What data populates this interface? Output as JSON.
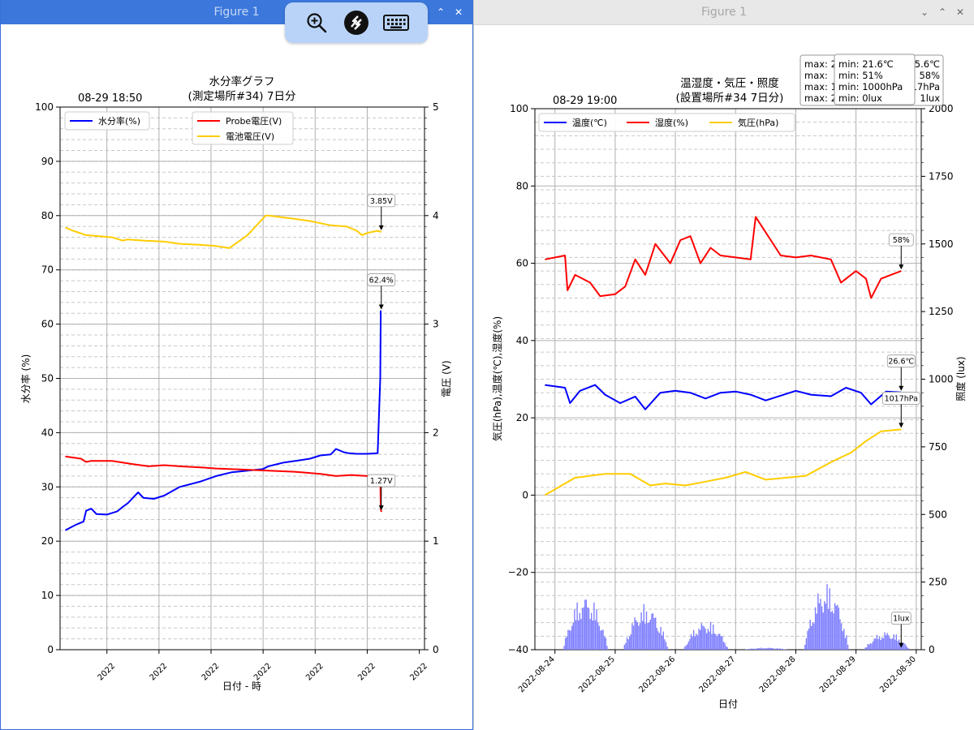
{
  "windows": [
    {
      "title": "Figure 1",
      "controls": {
        "minimize": "⌃",
        "maximize": "⌃",
        "close": "✕"
      }
    },
    {
      "title": "Figure 1",
      "controls": {
        "minimize": "⌄",
        "maximize": "⌃",
        "close": "✕"
      }
    }
  ],
  "remote_toolbar": {
    "icons": [
      "zoom-in-icon",
      "remote-connection-icon",
      "keyboard-icon"
    ]
  },
  "chart_data": [
    {
      "type": "line",
      "title": "水分率グラフ",
      "subtitle": "(測定場所#34) 7日分",
      "timestamp": "08-29 18:50",
      "xlabel": "日付 - 時",
      "ylabel": "水分率 (%)",
      "y2label": "電圧 (V)",
      "ylim": [
        0,
        100
      ],
      "y2lim": [
        0,
        5
      ],
      "xlim": [
        0,
        7
      ],
      "yticks": [
        "0",
        "10",
        "20",
        "30",
        "40",
        "50",
        "60",
        "70",
        "80",
        "90",
        "100"
      ],
      "y2ticks": [
        "0",
        "1",
        "2",
        "3",
        "4",
        "5"
      ],
      "xticks": [
        "2022",
        "2022",
        "2022",
        "2022",
        "2022",
        "2022",
        "2022"
      ],
      "grid": true,
      "legend": [
        {
          "label": "水分率(%)",
          "color": "#0000ff",
          "placement": "upper-left"
        },
        {
          "label": "Probe電圧(V)",
          "color": "#ff0000",
          "placement": "upper-center"
        },
        {
          "label": "電池電圧(V)",
          "color": "#ffcc00",
          "placement": "upper-center"
        }
      ],
      "series": [
        {
          "name": "水分率(%)",
          "axis": "left",
          "color": "#0000ff",
          "x": [
            0.1,
            0.3,
            0.45,
            0.5,
            0.6,
            0.7,
            0.9,
            1.1,
            1.2,
            1.3,
            1.4,
            1.5,
            1.6,
            1.8,
            2.0,
            2.3,
            2.7,
            3.0,
            3.3,
            3.6,
            3.9,
            4.0,
            4.3,
            4.6,
            4.8,
            5.0,
            5.2,
            5.3,
            5.45,
            5.55,
            5.7,
            5.9,
            6.1,
            6.15,
            6.16,
            6.17
          ],
          "y": [
            22,
            23,
            23.6,
            25.6,
            26,
            25,
            24.9,
            25.5,
            26.3,
            27,
            28,
            29,
            28,
            27.8,
            28.4,
            30,
            31,
            32,
            32.7,
            33,
            33.3,
            33.8,
            34.5,
            34.9,
            35.2,
            35.8,
            36,
            37,
            36.4,
            36.2,
            36.1,
            36.1,
            36.2,
            50,
            62.4,
            62.4
          ]
        },
        {
          "name": "Probe電圧(V)",
          "axis": "right",
          "color": "#ff0000",
          "x": [
            0.1,
            0.4,
            0.5,
            0.6,
            1.0,
            1.4,
            1.7,
            2.0,
            2.3,
            2.7,
            3.0,
            3.5,
            4.0,
            4.5,
            5.0,
            5.3,
            5.6,
            5.9,
            6.15,
            6.16,
            6.17
          ],
          "y": [
            1.78,
            1.76,
            1.73,
            1.74,
            1.74,
            1.71,
            1.69,
            1.7,
            1.69,
            1.68,
            1.67,
            1.66,
            1.65,
            1.64,
            1.62,
            1.6,
            1.61,
            1.6,
            1.6,
            1.3,
            1.27
          ]
        },
        {
          "name": "電池電圧(V)",
          "axis": "right",
          "color": "#ffcc00",
          "x": [
            0.1,
            0.25,
            0.5,
            1.0,
            1.2,
            1.3,
            1.6,
            2.0,
            2.3,
            2.7,
            3.0,
            3.25,
            3.6,
            3.95,
            4.0,
            4.5,
            4.8,
            5.0,
            5.2,
            5.5,
            5.7,
            5.8,
            5.9,
            6.1,
            6.17
          ],
          "y": [
            3.89,
            3.86,
            3.82,
            3.8,
            3.77,
            3.78,
            3.77,
            3.76,
            3.74,
            3.73,
            3.72,
            3.7,
            3.82,
            4.0,
            4.0,
            3.97,
            3.95,
            3.93,
            3.91,
            3.9,
            3.86,
            3.82,
            3.84,
            3.86,
            3.85
          ]
        }
      ],
      "annotations": [
        {
          "label": "3.85V",
          "series": 2,
          "x": 6.17,
          "y": 3.85
        },
        {
          "label": "62.4%",
          "series": 0,
          "x": 6.17,
          "y": 62.4
        },
        {
          "label": "1.27V",
          "series": 1,
          "x": 6.17,
          "y": 1.27
        }
      ]
    },
    {
      "type": "line",
      "title": "温湿度・気圧・照度",
      "subtitle": "(設置場所#34 7日分)",
      "timestamp": "08-29 19:00",
      "xlabel": "日付",
      "ylabel": "気圧(hPa),温度(℃),湿度(%)",
      "y2label": "照度 (lux)",
      "ylim": [
        -40,
        100
      ],
      "y2lim": [
        0,
        2000
      ],
      "xlim": [
        "2022-08-23 16:00",
        "2022-08-30 02:00"
      ],
      "yticks": [
        "−40",
        "−20",
        "0",
        "20",
        "40",
        "60",
        "80",
        "100"
      ],
      "y2ticks": [
        "0",
        "250",
        "500",
        "750",
        "1000",
        "1250",
        "1500",
        "1750",
        "2000"
      ],
      "xticks": [
        "2022-08-24",
        "2022-08-25",
        "2022-08-26",
        "2022-08-27",
        "2022-08-28",
        "2022-08-29",
        "2022-08-30"
      ],
      "grid": true,
      "legend": [
        {
          "label": "温度(℃)",
          "color": "#0000ff"
        },
        {
          "label": "湿度(%)",
          "color": "#ff0000"
        },
        {
          "label": "気圧(hPa)",
          "color": "#ffcc00"
        }
      ],
      "minmax_box": {
        "max_lines": [
          "max: 2",
          "max:",
          "max: 1",
          "max: 2"
        ],
        "min_lines": [
          "min: 21.6℃",
          "min:   51%",
          "min: 1000hPa",
          "min:    0lux"
        ],
        "overflow_lines": [
          "5.6℃",
          "58%",
          "017hPa",
          "1lux"
        ]
      },
      "series": [
        {
          "name": "温度(℃)",
          "axis": "left",
          "color": "#0000ff",
          "x": [
            "2022-08-23 20:00",
            "2022-08-24 04:00",
            "2022-08-24 06:00",
            "2022-08-24 10:00",
            "2022-08-24 16:00",
            "2022-08-24 20:00",
            "2022-08-25 02:00",
            "2022-08-25 08:00",
            "2022-08-25 12:00",
            "2022-08-25 18:00",
            "2022-08-26 00:00",
            "2022-08-26 06:00",
            "2022-08-26 12:00",
            "2022-08-26 18:00",
            "2022-08-27 00:00",
            "2022-08-27 06:00",
            "2022-08-27 12:00",
            "2022-08-28 00:00",
            "2022-08-28 06:00",
            "2022-08-28 14:00",
            "2022-08-28 20:00",
            "2022-08-29 02:00",
            "2022-08-29 06:00",
            "2022-08-29 12:00",
            "2022-08-29 18:00"
          ],
          "y": [
            28.5,
            27.8,
            23.8,
            27,
            28.5,
            26,
            23.8,
            25.5,
            22.2,
            26.5,
            27,
            26.5,
            25,
            26.5,
            26.8,
            26,
            24.5,
            27,
            26,
            25.6,
            27.8,
            26.5,
            23.5,
            26.8,
            26.6
          ]
        },
        {
          "name": "湿度(%)",
          "axis": "left",
          "color": "#ff0000",
          "x": [
            "2022-08-23 20:00",
            "2022-08-24 04:00",
            "2022-08-24 05:00",
            "2022-08-24 08:00",
            "2022-08-24 14:00",
            "2022-08-24 18:00",
            "2022-08-25 00:00",
            "2022-08-25 04:00",
            "2022-08-25 08:00",
            "2022-08-25 12:00",
            "2022-08-25 16:00",
            "2022-08-25 22:00",
            "2022-08-26 02:00",
            "2022-08-26 06:00",
            "2022-08-26 10:00",
            "2022-08-26 14:00",
            "2022-08-26 18:00",
            "2022-08-27 00:00",
            "2022-08-27 06:00",
            "2022-08-27 08:00",
            "2022-08-27 18:00",
            "2022-08-28 00:00",
            "2022-08-28 06:00",
            "2022-08-28 14:00",
            "2022-08-28 18:00",
            "2022-08-29 00:00",
            "2022-08-29 04:00",
            "2022-08-29 06:00",
            "2022-08-29 10:00",
            "2022-08-29 18:00"
          ],
          "y": [
            61,
            62,
            53,
            57,
            55,
            51.5,
            52,
            54,
            61,
            57,
            65,
            60,
            66,
            67,
            60,
            64,
            62,
            61.5,
            61,
            72,
            62,
            61.5,
            62,
            61,
            55,
            58,
            56,
            51,
            56,
            58
          ]
        },
        {
          "name": "気圧(hPa)",
          "axis": "left",
          "color": "#ffcc00",
          "x": [
            "2022-08-23 20:00",
            "2022-08-24 08:00",
            "2022-08-24 20:00",
            "2022-08-25 06:00",
            "2022-08-25 14:00",
            "2022-08-25 20:00",
            "2022-08-26 04:00",
            "2022-08-26 12:00",
            "2022-08-26 20:00",
            "2022-08-27 04:00",
            "2022-08-27 12:00",
            "2022-08-27 20:00",
            "2022-08-28 04:00",
            "2022-08-28 14:00",
            "2022-08-28 22:00",
            "2022-08-29 04:00",
            "2022-08-29 10:00",
            "2022-08-29 18:00"
          ],
          "y": [
            0,
            4.5,
            5.5,
            5.5,
            2.5,
            3,
            2.5,
            3.5,
            4.5,
            6,
            4,
            4.5,
            5,
            8.5,
            11,
            14,
            16.5,
            17
          ]
        }
      ],
      "bars": {
        "name": "照度(lux)",
        "axis": "right",
        "color": "#8080ff",
        "clusters": [
          {
            "center": "2022-08-24 12:00",
            "peak": 210
          },
          {
            "center": "2022-08-25 12:00",
            "peak": 170
          },
          {
            "center": "2022-08-26 12:00",
            "peak": 110
          },
          {
            "center": "2022-08-27 12:00",
            "peak": 8
          },
          {
            "center": "2022-08-28 12:00",
            "peak": 250
          },
          {
            "center": "2022-08-29 12:00",
            "peak": 70
          }
        ]
      },
      "annotations": [
        {
          "label": "58%",
          "series": 1,
          "x": "2022-08-29 18:00",
          "y": 58
        },
        {
          "label": "26.6℃",
          "series": 0,
          "x": "2022-08-29 18:00",
          "y": 26.6
        },
        {
          "label": "1017hPa",
          "series": 2,
          "x": "2022-08-29 18:00",
          "y": 17
        },
        {
          "label": "1lux",
          "series": "bars",
          "x": "2022-08-29 18:00",
          "y": 1
        }
      ]
    }
  ]
}
